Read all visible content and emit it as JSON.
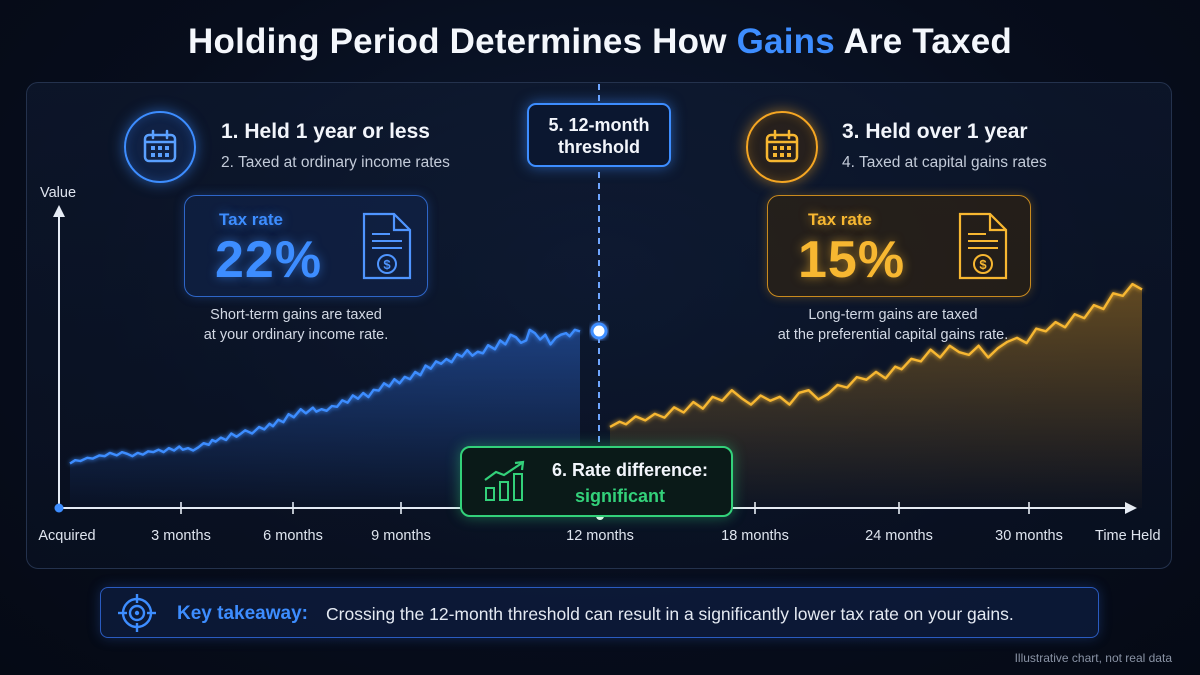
{
  "title": {
    "before": "Holding Period Determines How",
    "accent": "Gains",
    "after": "Are Taxed"
  },
  "short_term": {
    "heading": "1. Held 1 year or less",
    "subheading": "2. Taxed at ordinary income rates",
    "rate_label": "Tax rate",
    "rate_value": "22%",
    "desc_line1": "Short-term gains are taxed",
    "desc_line2": "at your ordinary income rate.",
    "icon": "calendar-icon",
    "color": "#3d8dff"
  },
  "long_term": {
    "heading": "3. Held over 1 year",
    "subheading": "4. Taxed at capital gains rates",
    "rate_label": "Tax rate",
    "rate_value": "15%",
    "desc_line1": "Long-term gains are taxed",
    "desc_line2": "at the preferential capital gains rate.",
    "icon": "calendar-icon",
    "color": "#f7b731"
  },
  "threshold": {
    "line1": "5. 12-month",
    "line2": "threshold"
  },
  "rate_difference": {
    "label": "6. Rate difference:",
    "value": "significant",
    "icon": "growth-chart-icon",
    "color": "#33d17a"
  },
  "takeaway": {
    "label": "Key takeaway:",
    "text": "Crossing the 12-month threshold can result in a significantly lower tax rate on your gains.",
    "icon": "target-icon"
  },
  "footnote": "Illustrative chart, not real data",
  "chart_data": {
    "type": "line",
    "title": "Holding Period Determines How Gains Are Taxed",
    "xlabel": "Time Held",
    "ylabel": "Value",
    "x_ticks": [
      "Acquired",
      "3 months",
      "6 months",
      "9 months",
      "12 months",
      "18 months",
      "24 months",
      "30 months"
    ],
    "x_tick_months": [
      0,
      3,
      6,
      9,
      12,
      18,
      24,
      30
    ],
    "xlim": [
      0,
      33
    ],
    "grid": false,
    "y_ticks_shown": false,
    "threshold_month": 12,
    "series": [
      {
        "segment": "short-term",
        "color": "#3d8dff",
        "points": [
          [
            0.3,
            13
          ],
          [
            0.6,
            17
          ],
          [
            0.9,
            16
          ],
          [
            1.3,
            20
          ],
          [
            1.6,
            19
          ],
          [
            2.0,
            23
          ],
          [
            2.3,
            22
          ],
          [
            2.6,
            26
          ],
          [
            3.0,
            23
          ],
          [
            3.3,
            27
          ],
          [
            3.6,
            25
          ],
          [
            3.9,
            22
          ],
          [
            4.2,
            26
          ],
          [
            4.5,
            24
          ],
          [
            4.8,
            28
          ],
          [
            5.1,
            27
          ],
          [
            5.4,
            30
          ],
          [
            5.7,
            27
          ],
          [
            6.0,
            32
          ],
          [
            6.3,
            29
          ],
          [
            6.6,
            34
          ],
          [
            6.8,
            30
          ],
          [
            7.1,
            32
          ],
          [
            7.4,
            29
          ],
          [
            7.7,
            33
          ],
          [
            8.0,
            38
          ],
          [
            8.3,
            36
          ],
          [
            8.5,
            42
          ],
          [
            8.7,
            40
          ],
          [
            9.0,
            45
          ],
          [
            9.3,
            42
          ],
          [
            9.6,
            50
          ],
          [
            9.9,
            46
          ],
          [
            10.1,
            49
          ],
          [
            10.4,
            54
          ],
          [
            10.8,
            50
          ],
          [
            11.2,
            58
          ],
          [
            11.5,
            55
          ],
          [
            11.8,
            62
          ],
          [
            12.0,
            59
          ],
          [
            12.3,
            67
          ],
          [
            12.6,
            64
          ],
          [
            12.9,
            74
          ],
          [
            13.2,
            70
          ],
          [
            13.6,
            80
          ],
          [
            13.9,
            75
          ],
          [
            14.3,
            82
          ],
          [
            14.5,
            77
          ],
          [
            14.8,
            80
          ],
          [
            15.1,
            78
          ],
          [
            15.4,
            84
          ],
          [
            15.7,
            83
          ],
          [
            16.0,
            91
          ],
          [
            16.3,
            88
          ],
          [
            16.6,
            97
          ],
          [
            16.9,
            93
          ],
          [
            17.2,
            100
          ],
          [
            17.5,
            95
          ],
          [
            17.8,
            104
          ],
          [
            18.1,
            103
          ],
          [
            18.4,
            112
          ],
          [
            18.7,
            108
          ],
          [
            19.0,
            117
          ],
          [
            19.3,
            112
          ],
          [
            19.6,
            120
          ],
          [
            19.9,
            117
          ],
          [
            20.2,
            126
          ],
          [
            20.5,
            122
          ],
          [
            20.8,
            134
          ],
          [
            21.1,
            130
          ],
          [
            21.4,
            139
          ],
          [
            21.7,
            136
          ],
          [
            22.0,
            142
          ],
          [
            22.3,
            138
          ],
          [
            22.6,
            148
          ],
          [
            22.9,
            145
          ],
          [
            23.2,
            153
          ],
          [
            23.5,
            146
          ],
          [
            23.8,
            151
          ],
          [
            24.1,
            149
          ],
          [
            24.4,
            159
          ],
          [
            24.8,
            154
          ],
          [
            25.1,
            165
          ],
          [
            25.4,
            160
          ],
          [
            25.7,
            172
          ],
          [
            26.0,
            169
          ],
          [
            26.3,
            162
          ],
          [
            26.6,
            165
          ],
          [
            26.8,
            178
          ],
          [
            27.1,
            174
          ],
          [
            27.4,
            166
          ],
          [
            27.7,
            172
          ],
          [
            28.0,
            160
          ],
          [
            28.3,
            168
          ],
          [
            28.6,
            172
          ],
          [
            28.9,
            174
          ],
          [
            29.1,
            170
          ],
          [
            29.4,
            178
          ],
          [
            29.7,
            176
          ]
        ]
      },
      {
        "segment": "long-term",
        "color": "#f7b731",
        "points": [
          [
            0,
            10
          ],
          [
            0.3,
            14
          ],
          [
            0.5,
            12
          ],
          [
            0.8,
            18
          ],
          [
            1.1,
            15
          ],
          [
            1.4,
            20
          ],
          [
            1.7,
            17
          ],
          [
            2.0,
            25
          ],
          [
            2.3,
            21
          ],
          [
            2.6,
            29
          ],
          [
            2.9,
            24
          ],
          [
            3.2,
            33
          ],
          [
            3.5,
            30
          ],
          [
            3.8,
            38
          ],
          [
            4.1,
            32
          ],
          [
            4.4,
            27
          ],
          [
            4.7,
            34
          ],
          [
            5.0,
            30
          ],
          [
            5.3,
            33
          ],
          [
            5.6,
            27
          ],
          [
            5.9,
            36
          ],
          [
            6.2,
            38
          ],
          [
            6.5,
            31
          ],
          [
            6.8,
            35
          ],
          [
            7.1,
            42
          ],
          [
            7.4,
            40
          ],
          [
            7.7,
            48
          ],
          [
            8.0,
            46
          ],
          [
            8.3,
            52
          ],
          [
            8.6,
            47
          ],
          [
            8.9,
            56
          ],
          [
            9.1,
            54
          ],
          [
            9.4,
            62
          ],
          [
            9.7,
            60
          ],
          [
            10.0,
            69
          ],
          [
            10.3,
            63
          ],
          [
            10.6,
            72
          ],
          [
            10.9,
            67
          ],
          [
            11.2,
            65
          ],
          [
            11.5,
            72
          ],
          [
            11.8,
            63
          ],
          [
            12.1,
            70
          ],
          [
            12.4,
            75
          ],
          [
            12.7,
            78
          ],
          [
            13.0,
            74
          ],
          [
            13.3,
            85
          ],
          [
            13.6,
            83
          ],
          [
            13.9,
            90
          ],
          [
            14.2,
            86
          ],
          [
            14.5,
            96
          ],
          [
            14.8,
            93
          ],
          [
            15.1,
            103
          ],
          [
            15.4,
            100
          ],
          [
            15.7,
            112
          ],
          [
            16.0,
            110
          ],
          [
            16.3,
            119
          ],
          [
            16.6,
            115
          ]
        ]
      }
    ]
  }
}
